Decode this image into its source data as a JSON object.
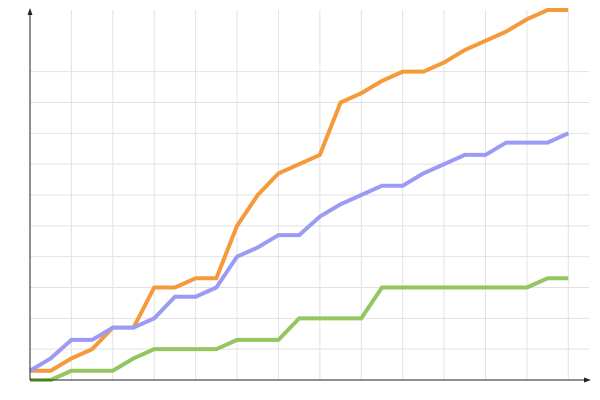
{
  "chart_data": {
    "type": "line",
    "x": [
      0,
      1,
      2,
      3,
      4,
      5,
      6,
      7,
      8,
      9,
      10,
      11,
      12,
      13,
      14,
      15,
      16,
      17,
      18,
      19,
      20,
      21,
      22,
      23,
      24,
      25,
      26
    ],
    "series": [
      {
        "color": "#f59a3a",
        "values": [
          0.3,
          0.3,
          0.7,
          1,
          1.7,
          1.7,
          3,
          3,
          3.3,
          3.3,
          5,
          6,
          6.7,
          7,
          7.3,
          9,
          9.3,
          9.7,
          10,
          10,
          10.3,
          10.7,
          11,
          11.3,
          11.7,
          12,
          12
        ]
      },
      {
        "color": "#9b9bf5",
        "values": [
          0.3,
          0.7,
          1.3,
          1.3,
          1.7,
          1.7,
          2,
          2.7,
          2.7,
          3,
          4,
          4.3,
          4.7,
          4.7,
          5.3,
          5.7,
          6,
          6.3,
          6.3,
          6.7,
          7,
          7.3,
          7.3,
          7.7,
          7.7,
          7.7,
          8
        ]
      },
      {
        "color": "#93c65f",
        "values": [
          0,
          0,
          0.3,
          0.3,
          0.3,
          0.7,
          1,
          1,
          1,
          1,
          1.3,
          1.3,
          1.3,
          2,
          2,
          2,
          2,
          3,
          3,
          3,
          3,
          3,
          3,
          3,
          3,
          3.3,
          3.3
        ]
      }
    ],
    "xlim": [
      0,
      27
    ],
    "ylim": [
      0,
      12
    ],
    "xticks": [
      2,
      4,
      6,
      8,
      10,
      12,
      14,
      16,
      18,
      20,
      22,
      24,
      26
    ],
    "yticks": [
      1,
      2,
      3,
      4,
      5,
      6,
      7,
      8,
      9,
      10
    ],
    "grid": true
  }
}
